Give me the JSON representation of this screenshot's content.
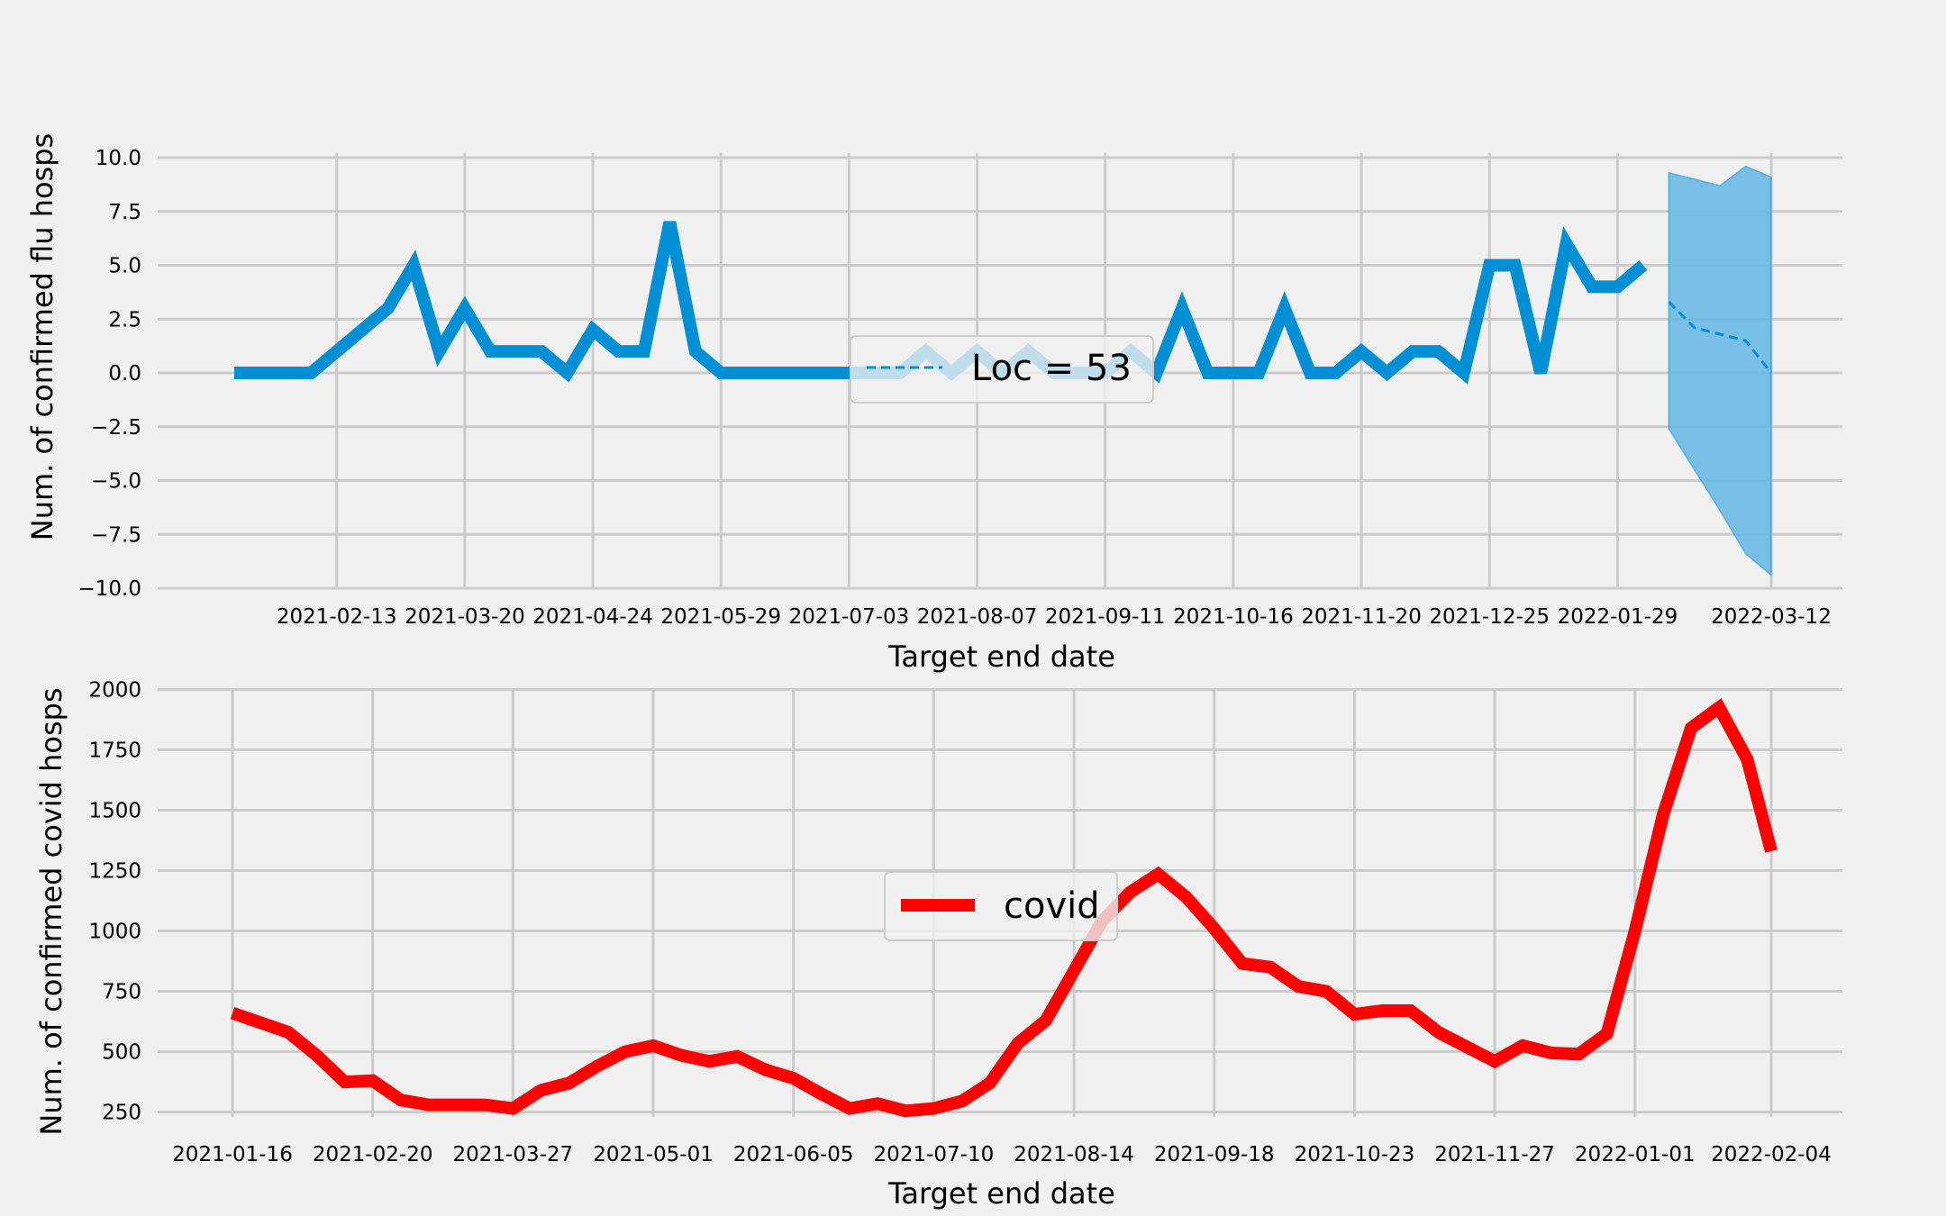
{
  "chart_data": [
    {
      "type": "line",
      "xlabel": "Target end date",
      "ylabel": "Num. of confirmed flu hosps",
      "ylim": [
        -10,
        10
      ],
      "yticks": [
        "−10.0",
        "−7.5",
        "−5.0",
        "−2.5",
        "0.0",
        "2.5",
        "5.0",
        "7.5",
        "10.0"
      ],
      "xticks": [
        "2021-02-13",
        "2021-03-20",
        "2021-04-24",
        "2021-05-29",
        "2021-07-03",
        "2021-08-07",
        "2021-09-11",
        "2021-10-16",
        "2021-11-20",
        "2021-12-25",
        "2022-01-29",
        "2022-03-12"
      ],
      "grid": true,
      "legend": {
        "position": "center",
        "entries": [
          "Loc = 53"
        ]
      },
      "colors": {
        "observed": "#008fd5",
        "forecast": "#008fd5",
        "band": "#6cb9e3"
      },
      "series": [
        {
          "x": [
            "2021-01-16",
            "2021-01-23",
            "2021-01-30",
            "2021-02-06",
            "2021-02-13",
            "2021-02-20",
            "2021-02-27",
            "2021-03-06",
            "2021-03-13",
            "2021-03-20",
            "2021-03-27",
            "2021-04-03",
            "2021-04-10",
            "2021-04-17",
            "2021-04-24",
            "2021-05-01",
            "2021-05-08",
            "2021-05-15",
            "2021-05-22",
            "2021-05-29",
            "2021-06-05",
            "2021-06-12",
            "2021-06-19",
            "2021-06-26",
            "2021-07-03",
            "2021-07-10",
            "2021-07-17",
            "2021-07-24",
            "2021-07-31",
            "2021-08-07",
            "2021-08-14",
            "2021-08-21",
            "2021-08-28",
            "2021-09-04",
            "2021-09-11",
            "2021-09-18",
            "2021-09-25",
            "2021-10-02",
            "2021-10-09",
            "2021-10-16",
            "2021-10-23",
            "2021-10-30",
            "2021-11-06",
            "2021-11-13",
            "2021-11-20",
            "2021-11-27",
            "2021-12-04",
            "2021-12-11",
            "2021-12-18",
            "2021-12-25",
            "2022-01-01",
            "2022-01-08",
            "2022-01-15",
            "2022-01-22",
            "2022-01-29",
            "2022-02-05"
          ],
          "values": [
            0,
            0,
            0,
            0,
            1,
            2,
            3,
            5,
            1,
            3,
            1,
            1,
            1,
            0,
            2,
            1,
            1,
            7,
            1,
            0,
            0,
            0,
            0,
            0,
            0,
            0,
            0,
            1,
            0,
            1,
            0,
            1,
            0,
            0,
            0,
            1,
            0,
            3,
            0,
            0,
            0,
            3,
            0,
            0,
            1,
            0,
            1,
            1,
            0,
            5,
            5,
            0,
            6,
            4,
            4,
            5
          ]
        },
        {
          "x": [
            "2022-02-12",
            "2022-02-19",
            "2022-02-26",
            "2022-03-05",
            "2022-03-12"
          ],
          "values": [
            3.3,
            2.1,
            1.8,
            1.5,
            0.0
          ],
          "lower": [
            -2.6,
            -4.5,
            -6.4,
            -8.4,
            -9.4
          ],
          "upper": [
            9.3,
            9.0,
            8.7,
            9.6,
            9.1
          ]
        }
      ]
    },
    {
      "type": "line",
      "xlabel": "Target end date",
      "ylabel": "Num. of confirmed covid hosps",
      "ylim": [
        230,
        2020
      ],
      "yticks": [
        "250",
        "500",
        "750",
        "1000",
        "1250",
        "1500",
        "1750",
        "2000"
      ],
      "xticks": [
        "2021-01-16",
        "2021-02-20",
        "2021-03-27",
        "2021-05-01",
        "2021-06-05",
        "2021-07-10",
        "2021-08-14",
        "2021-09-18",
        "2021-10-23",
        "2021-11-27",
        "2022-01-01",
        "2022-02-04"
      ],
      "grid": true,
      "legend": {
        "position": "center",
        "entries": [
          "covid"
        ]
      },
      "colors": {
        "line": "#ff0000"
      },
      "series": [
        {
          "name": "covid",
          "x": [
            "2021-01-16",
            "2021-01-23",
            "2021-01-30",
            "2021-02-06",
            "2021-02-13",
            "2021-02-20",
            "2021-02-27",
            "2021-03-06",
            "2021-03-13",
            "2021-03-20",
            "2021-03-27",
            "2021-04-03",
            "2021-04-10",
            "2021-04-17",
            "2021-04-24",
            "2021-05-01",
            "2021-05-08",
            "2021-05-15",
            "2021-05-22",
            "2021-05-29",
            "2021-06-05",
            "2021-06-12",
            "2021-06-19",
            "2021-06-26",
            "2021-07-03",
            "2021-07-10",
            "2021-07-17",
            "2021-07-24",
            "2021-07-31",
            "2021-08-07",
            "2021-08-14",
            "2021-08-21",
            "2021-08-28",
            "2021-09-04",
            "2021-09-11",
            "2021-09-18",
            "2021-09-25",
            "2021-10-02",
            "2021-10-09",
            "2021-10-16",
            "2021-10-23",
            "2021-10-30",
            "2021-11-06",
            "2021-11-13",
            "2021-11-20",
            "2021-11-27",
            "2021-12-04",
            "2021-12-11",
            "2021-12-18",
            "2021-12-25",
            "2022-01-01",
            "2022-01-08",
            "2022-01-15",
            "2022-01-22",
            "2022-01-29",
            "2022-02-04"
          ],
          "values": [
            660,
            620,
            580,
            485,
            375,
            380,
            300,
            280,
            280,
            280,
            265,
            340,
            370,
            440,
            500,
            525,
            485,
            460,
            480,
            425,
            390,
            325,
            265,
            285,
            255,
            265,
            295,
            370,
            535,
            630,
            835,
            1040,
            1160,
            1235,
            1140,
            1010,
            865,
            850,
            770,
            750,
            655,
            670,
            670,
            580,
            520,
            460,
            525,
            495,
            490,
            575,
            1000,
            1480,
            1840,
            1925,
            1710,
            1330
          ]
        }
      ]
    }
  ]
}
